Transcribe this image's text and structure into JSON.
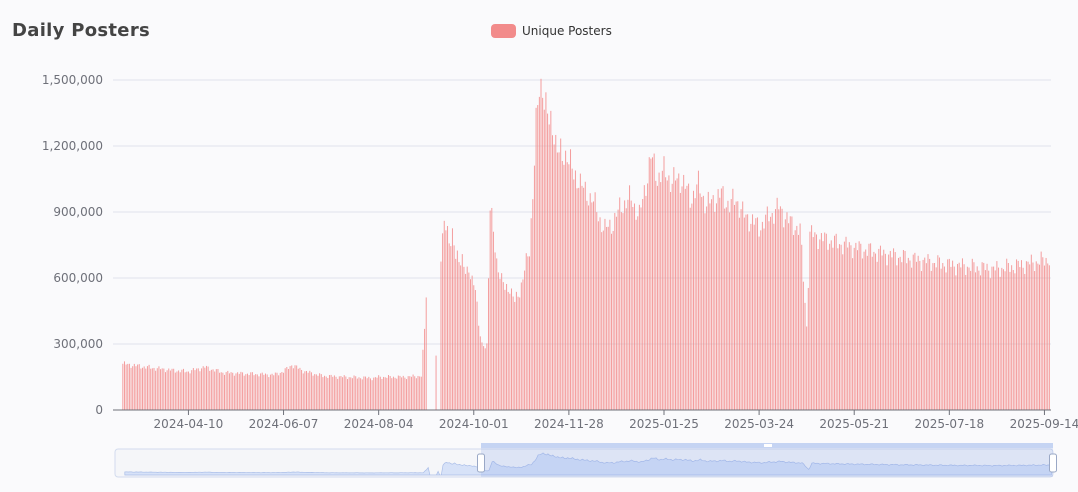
{
  "title": "Daily Posters",
  "legend": {
    "label": "Unique Posters",
    "color": "#f28b8b"
  },
  "chart_data": {
    "type": "bar",
    "series": [
      {
        "name": "Unique Posters",
        "color": "#f28b8b"
      }
    ],
    "ylim": [
      0,
      1500000
    ],
    "y_ticks": [
      "0",
      "300,000",
      "600,000",
      "900,000",
      "1,200,000",
      "1,500,000"
    ],
    "x_ticks": [
      "2024-04-10",
      "2024-06-07",
      "2024-08-04",
      "2024-10-01",
      "2024-11-28",
      "2025-01-25",
      "2025-03-24",
      "2025-05-21",
      "2025-07-18",
      "2025-09-14"
    ],
    "points": [
      [
        "2024-03-01",
        210000
      ],
      [
        "2024-03-15",
        195000
      ],
      [
        "2024-04-01",
        180000
      ],
      [
        "2024-04-10",
        175000
      ],
      [
        "2024-04-20",
        195000
      ],
      [
        "2024-05-01",
        170000
      ],
      [
        "2024-05-15",
        165000
      ],
      [
        "2024-06-01",
        160000
      ],
      [
        "2024-06-07",
        175000
      ],
      [
        "2024-06-12",
        205000
      ],
      [
        "2024-06-20",
        175000
      ],
      [
        "2024-07-01",
        155000
      ],
      [
        "2024-07-15",
        150000
      ],
      [
        "2024-08-01",
        145000
      ],
      [
        "2024-08-04",
        150000
      ],
      [
        "2024-08-20",
        150000
      ],
      [
        "2024-08-30",
        155000
      ],
      [
        "2024-09-01",
        360000
      ],
      [
        "2024-09-02",
        530000
      ],
      [
        "2024-09-03",
        0
      ],
      [
        "2024-09-07",
        0
      ],
      [
        "2024-09-08",
        250000
      ],
      [
        "2024-09-09",
        0
      ],
      [
        "2024-09-10",
        0
      ],
      [
        "2024-09-11",
        720000
      ],
      [
        "2024-09-13",
        850000
      ],
      [
        "2024-09-16",
        760000
      ],
      [
        "2024-09-18",
        820000
      ],
      [
        "2024-09-20",
        700000
      ],
      [
        "2024-09-22",
        660000
      ],
      [
        "2024-09-24",
        700000
      ],
      [
        "2024-09-27",
        620000
      ],
      [
        "2024-09-30",
        590000
      ],
      [
        "2024-10-02",
        580000
      ],
      [
        "2024-10-04",
        380000
      ],
      [
        "2024-10-06",
        290000
      ],
      [
        "2024-10-09",
        300000
      ],
      [
        "2024-10-11",
        920000
      ],
      [
        "2024-10-13",
        800000
      ],
      [
        "2024-10-15",
        680000
      ],
      [
        "2024-10-18",
        590000
      ],
      [
        "2024-10-20",
        550000
      ],
      [
        "2024-10-23",
        560000
      ],
      [
        "2024-10-26",
        490000
      ],
      [
        "2024-10-29",
        540000
      ],
      [
        "2024-11-01",
        640000
      ],
      [
        "2024-11-04",
        720000
      ],
      [
        "2024-11-06",
        1000000
      ],
      [
        "2024-11-08",
        1300000
      ],
      [
        "2024-11-10",
        1430000
      ],
      [
        "2024-11-12",
        1480000
      ],
      [
        "2024-11-14",
        1400000
      ],
      [
        "2024-11-16",
        1290000
      ],
      [
        "2024-11-19",
        1270000
      ],
      [
        "2024-11-21",
        1200000
      ],
      [
        "2024-11-24",
        1130000
      ],
      [
        "2024-11-27",
        1180000
      ],
      [
        "2024-11-29",
        1120000
      ],
      [
        "2024-12-01",
        1050000
      ],
      [
        "2024-12-04",
        1060000
      ],
      [
        "2024-12-08",
        980000
      ],
      [
        "2024-12-12",
        970000
      ],
      [
        "2024-12-16",
        880000
      ],
      [
        "2024-12-20",
        820000
      ],
      [
        "2024-12-25",
        850000
      ],
      [
        "2024-12-30",
        930000
      ],
      [
        "2025-01-05",
        960000
      ],
      [
        "2025-01-10",
        880000
      ],
      [
        "2025-01-14",
        1030000
      ],
      [
        "2025-01-17",
        1150000
      ],
      [
        "2025-01-21",
        1060000
      ],
      [
        "2025-01-25",
        1080000
      ],
      [
        "2025-01-30",
        1040000
      ],
      [
        "2025-02-05",
        1050000
      ],
      [
        "2025-02-10",
        960000
      ],
      [
        "2025-02-15",
        1020000
      ],
      [
        "2025-02-20",
        930000
      ],
      [
        "2025-02-25",
        960000
      ],
      [
        "2025-03-01",
        980000
      ],
      [
        "2025-03-06",
        930000
      ],
      [
        "2025-03-10",
        960000
      ],
      [
        "2025-03-15",
        880000
      ],
      [
        "2025-03-20",
        860000
      ],
      [
        "2025-03-24",
        830000
      ],
      [
        "2025-03-30",
        880000
      ],
      [
        "2025-04-05",
        920000
      ],
      [
        "2025-04-12",
        850000
      ],
      [
        "2025-04-18",
        820000
      ],
      [
        "2025-04-22",
        380000
      ],
      [
        "2025-04-24",
        800000
      ],
      [
        "2025-05-01",
        780000
      ],
      [
        "2025-05-10",
        760000
      ],
      [
        "2025-05-21",
        740000
      ],
      [
        "2025-06-01",
        720000
      ],
      [
        "2025-06-15",
        700000
      ],
      [
        "2025-06-30",
        680000
      ],
      [
        "2025-07-18",
        660000
      ],
      [
        "2025-08-01",
        650000
      ],
      [
        "2025-08-15",
        640000
      ],
      [
        "2025-09-01",
        660000
      ],
      [
        "2025-09-14",
        680000
      ],
      [
        "2025-09-17",
        690000
      ]
    ]
  }
}
